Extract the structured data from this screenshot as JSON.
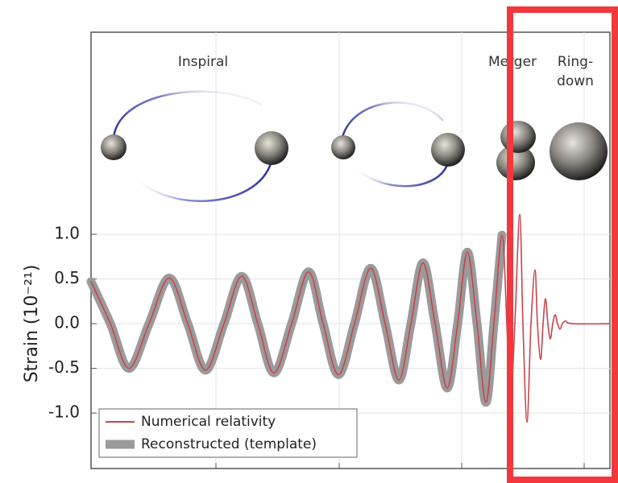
{
  "chart_data": {
    "type": "line",
    "y_label": "Strain (10⁻²¹)",
    "annotations": [
      "Inspiral",
      "Merger",
      [
        "Ring-",
        "down"
      ]
    ],
    "x": [
      0.0,
      0.24,
      0.47,
      0.72,
      0.97,
      1.2,
      1.42,
      1.65,
      1.87,
      2.07,
      2.27,
      2.49,
      2.7,
      2.88,
      3.07,
      3.27,
      3.47,
      3.65,
      3.82,
      3.97,
      4.12,
      4.27,
      4.42,
      4.55,
      4.67,
      4.79,
      4.9,
      5.0,
      5.1,
      5.16,
      5.2,
      5.26,
      5.32,
      5.36,
      5.41,
      5.46,
      5.51,
      5.54,
      5.58,
      5.61,
      5.64,
      5.67,
      5.7,
      5.73,
      5.76,
      5.79,
      5.82,
      5.85,
      5.89,
      5.97,
      6.44
    ],
    "series": [
      {
        "name": "Reconstructed (template)",
        "color": "#9a9a9a",
        "values": [
          0.47,
          0,
          -0.5,
          0,
          0.51,
          0,
          -0.52,
          0,
          0.53,
          0,
          -0.55,
          0,
          0.58,
          0,
          -0.57,
          0,
          0.62,
          0,
          -0.63,
          0,
          0.68,
          0,
          -0.72,
          0,
          0.8,
          0,
          -0.88,
          0,
          0.99,
          null,
          null,
          null,
          null,
          null,
          null,
          null,
          null,
          null,
          null,
          null,
          null,
          null,
          null,
          null,
          null,
          null,
          null,
          null,
          null,
          null,
          null
        ]
      },
      {
        "name": "Numerical relativity",
        "color": "#c9434c",
        "values": [
          0.47,
          0,
          -0.5,
          0,
          0.51,
          0,
          -0.52,
          0,
          0.53,
          0,
          -0.55,
          0,
          0.58,
          0,
          -0.57,
          0,
          0.62,
          0,
          -0.63,
          0,
          0.68,
          0,
          -0.72,
          0,
          0.8,
          0,
          -0.88,
          0,
          0.99,
          0,
          -0.98,
          0,
          1.22,
          0,
          -1.1,
          0,
          0.6,
          0,
          -0.4,
          0,
          0.28,
          0,
          -0.17,
          0,
          0.1,
          0,
          -0.06,
          0,
          0.03,
          0,
          0
        ]
      }
    ],
    "xlim": [
      0,
      6.44
    ],
    "xticks": [
      1.55,
      3.08,
      4.6,
      6.12
    ],
    "ylim": [
      -1.62,
      3.26
    ],
    "yticks": [
      {
        "value": -1,
        "label": "-1.0"
      },
      -0.5,
      {
        "value": 0,
        "label": "0.0"
      },
      0.5,
      {
        "value": 1,
        "label": "1.0"
      }
    ],
    "grid": true,
    "legend": "lower left"
  }
}
